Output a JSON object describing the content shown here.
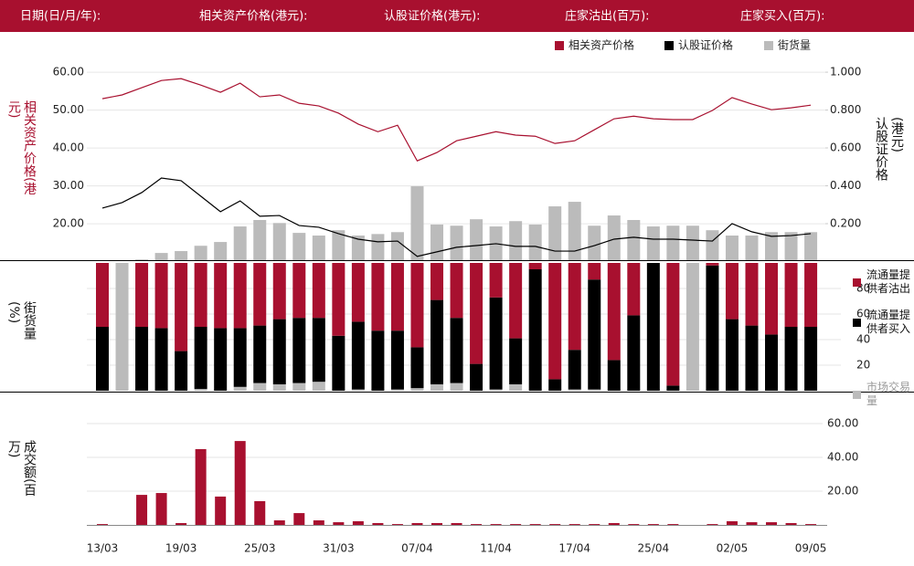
{
  "header": {
    "labels": [
      "日期(日/月/年):",
      "相关资产价格(港元):",
      "认股证价格(港元):",
      "庄家沽出(百万):",
      "庄家买入(百万):"
    ]
  },
  "chart_data": [
    {
      "type": "line",
      "ylabel": "相关资产价格(港元)",
      "y2label": "认股证价格(港元)",
      "series": [
        {
          "name": "相关资产价格",
          "color": "#a8102f",
          "axis": "y",
          "values": [
            53.0,
            54.0,
            55.9,
            57.8,
            58.3,
            56.6,
            54.7,
            57.1,
            53.5,
            54.0,
            51.8,
            51.1,
            49.2,
            46.3,
            44.3,
            46.0,
            36.6,
            38.8,
            41.9,
            43.1,
            44.3,
            43.4,
            43.1,
            41.2,
            41.9,
            44.8,
            47.7,
            48.4,
            47.7,
            47.5,
            47.5,
            49.9,
            53.3,
            51.6,
            50.1,
            50.6,
            51.3
          ]
        },
        {
          "name": "认股证价格",
          "color": "#000000",
          "axis": "y2",
          "values": [
            0.282,
            0.311,
            0.364,
            0.441,
            0.427,
            0.345,
            0.263,
            0.32,
            0.239,
            0.243,
            0.19,
            0.181,
            0.147,
            0.118,
            0.104,
            0.108,
            0.027,
            0.051,
            0.075,
            0.084,
            0.094,
            0.08,
            0.08,
            0.055,
            0.055,
            0.084,
            0.118,
            0.128,
            0.118,
            0.118,
            0.113,
            0.108,
            0.2,
            0.157,
            0.133,
            0.137,
            0.147
          ]
        },
        {
          "name": "街货量",
          "color": "#bbbbbb",
          "type": "bar",
          "axis": "y",
          "values": [
            10.4,
            10.4,
            10.6,
            12.3,
            12.8,
            14.2,
            15.2,
            19.3,
            21.0,
            20.2,
            17.6,
            16.9,
            18.3,
            16.9,
            17.3,
            17.8,
            29.9,
            19.8,
            19.5,
            21.2,
            19.3,
            20.7,
            19.8,
            24.6,
            25.8,
            19.5,
            22.2,
            21.0,
            19.3,
            19.5,
            19.5,
            18.3,
            16.9,
            16.9,
            17.8,
            17.8,
            17.8
          ]
        }
      ],
      "ylim": [
        10.4,
        65.8
      ],
      "yticks": [
        {
          "value": 20,
          "label": "20.00"
        },
        {
          "value": 30,
          "label": "30.00"
        },
        {
          "value": 40,
          "label": "40.00"
        },
        {
          "value": 50,
          "label": "50.00"
        },
        {
          "value": 60,
          "label": "60.00"
        }
      ],
      "y2lim": [
        0.007,
        1.116
      ],
      "y2ticks": [
        {
          "value": 0.2,
          "label": "0.200"
        },
        {
          "value": 0.4,
          "label": "0.400"
        },
        {
          "value": 0.6,
          "label": "0.600"
        },
        {
          "value": 0.8,
          "label": "0.800"
        },
        {
          "value": 1.0,
          "label": "1.000"
        }
      ],
      "grid": true
    },
    {
      "type": "stacked_bar",
      "ylabel": "街货量(%)",
      "series": [
        {
          "name": "流通量提供者沽出",
          "color": "#a8102f",
          "values": [
            50,
            0,
            50,
            51,
            69,
            50,
            51,
            51,
            49,
            44,
            43,
            43,
            57,
            46,
            53,
            53,
            66,
            29,
            43,
            79,
            27,
            59,
            5,
            91,
            68,
            13,
            76,
            41,
            0,
            96,
            0,
            2,
            44,
            49,
            56,
            50,
            50
          ]
        },
        {
          "name": "流通量提供者买入",
          "color": "#000000",
          "values": [
            50,
            0,
            50,
            49,
            31,
            48.6,
            49,
            46,
            45,
            51,
            51,
            50,
            43,
            53,
            47,
            46,
            32,
            66,
            51,
            21,
            72,
            36,
            95,
            9,
            31,
            86,
            24,
            59,
            100,
            4,
            0,
            98,
            56,
            51,
            44,
            50,
            50
          ]
        },
        {
          "name": "市场交易量",
          "color": "#bbbbbb",
          "values": [
            0,
            100,
            0,
            0,
            0,
            1.4,
            0,
            3,
            6,
            5,
            6,
            7,
            0,
            1,
            0,
            1,
            2,
            5,
            6,
            0,
            1,
            5,
            0,
            0,
            1,
            1,
            0,
            0,
            0,
            0,
            100,
            0,
            0,
            0,
            0,
            0,
            0
          ]
        }
      ],
      "ylim": [
        0,
        100
      ],
      "yticks": [
        20,
        40,
        60,
        80
      ],
      "grid": true
    },
    {
      "type": "bar",
      "ylabel": "成交额(百万)",
      "categories": [
        "13/03",
        null,
        null,
        null,
        "19/03",
        null,
        null,
        null,
        "25/03",
        null,
        null,
        null,
        "31/03",
        null,
        null,
        null,
        "07/04",
        null,
        null,
        null,
        "11/04",
        null,
        null,
        null,
        "17/04",
        null,
        null,
        null,
        "25/04",
        null,
        null,
        null,
        "02/05",
        null,
        null,
        null,
        "09/05"
      ],
      "values": [
        0.5,
        0,
        17.8,
        18.9,
        1.1,
        44.9,
        16.8,
        49.7,
        14.1,
        2.7,
        7.0,
        2.7,
        1.6,
        2.2,
        1.1,
        0.5,
        1.1,
        1.1,
        1.1,
        0.5,
        0.5,
        0.5,
        0.5,
        0.5,
        0.5,
        0.5,
        1.1,
        0.5,
        0.5,
        0.5,
        0,
        0.5,
        2.2,
        1.6,
        1.6,
        1.1,
        0.5
      ],
      "color": "#a8102f",
      "ylim": [
        0,
        67.6
      ],
      "yticks": [
        {
          "value": 20,
          "label": "20.00"
        },
        {
          "value": 40,
          "label": "40.00"
        },
        {
          "value": 60,
          "label": "60.00"
        }
      ],
      "grid": true
    }
  ]
}
